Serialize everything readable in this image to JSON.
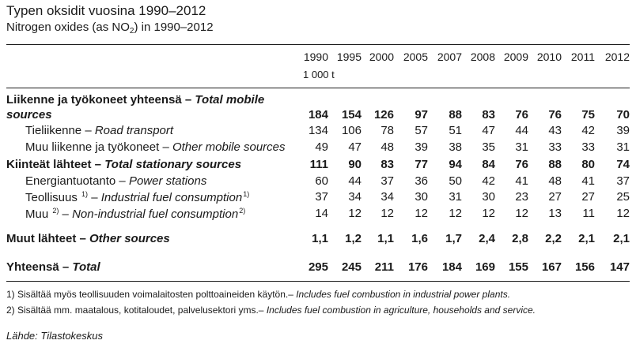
{
  "title": "Typen oksidit vuosina 1990–2012",
  "subtitle_prefix": "Nitrogen oxides (as NO",
  "subtitle_sub": "2",
  "subtitle_suffix": ") in 1990–2012",
  "years": [
    "1990",
    "1995",
    "2000",
    "2005",
    "2007",
    "2008",
    "2009",
    "2010",
    "2011",
    "2012"
  ],
  "unit": "1 000 t",
  "rows": [
    {
      "fi": "Liikenne ja työkoneet yhteensä – ",
      "en": "Total mobile",
      "bold": true,
      "indent": false,
      "values": []
    },
    {
      "fi": "",
      "en": "sources",
      "bold": true,
      "indent": false,
      "values": [
        "184",
        "154",
        "126",
        "97",
        "88",
        "83",
        "76",
        "76",
        "75",
        "70"
      ]
    },
    {
      "fi": "Tieliikenne – ",
      "en": "Road transport",
      "bold": false,
      "indent": true,
      "values": [
        "134",
        "106",
        "78",
        "57",
        "51",
        "47",
        "44",
        "43",
        "42",
        "39"
      ]
    },
    {
      "fi": "Muu liikenne ja työkoneet – ",
      "en": "Other mobile sources",
      "bold": false,
      "indent": true,
      "values": [
        "49",
        "47",
        "48",
        "39",
        "38",
        "35",
        "31",
        "33",
        "33",
        "31"
      ]
    },
    {
      "fi": "Kiinteät lähteet – ",
      "en": "Total stationary sources",
      "bold": true,
      "indent": false,
      "values": [
        "111",
        "90",
        "83",
        "77",
        "94",
        "84",
        "76",
        "88",
        "80",
        "74"
      ]
    },
    {
      "fi": "Energiantuotanto – ",
      "en": "Power stations",
      "bold": false,
      "indent": true,
      "values": [
        "60",
        "44",
        "37",
        "36",
        "50",
        "42",
        "41",
        "48",
        "41",
        "37"
      ]
    },
    {
      "fi": "Teollisuus ",
      "fi_sup": "1)",
      "fi2": " – ",
      "en": "Industrial fuel consumption",
      "en_sup": "1)",
      "bold": false,
      "indent": true,
      "values": [
        "37",
        "34",
        "34",
        "30",
        "31",
        "30",
        "23",
        "27",
        "27",
        "25"
      ]
    },
    {
      "fi": "Muu ",
      "fi_sup": "2)",
      "fi2": " – ",
      "en": "Non-industrial fuel consumption",
      "en_sup": "2)",
      "bold": false,
      "indent": true,
      "values": [
        "14",
        "12",
        "12",
        "12",
        "12",
        "12",
        "12",
        "13",
        "11",
        "12"
      ]
    },
    {
      "fi": "Muut lähteet – ",
      "en": "Other sources",
      "bold": true,
      "indent": false,
      "values": [
        "1,1",
        "1,2",
        "1,1",
        "1,6",
        "1,7",
        "2,4",
        "2,8",
        "2,2",
        "2,1",
        "2,1"
      ]
    },
    {
      "fi": "Yhteensä – ",
      "en": "Total",
      "bold": true,
      "indent": false,
      "values": [
        "295",
        "245",
        "211",
        "176",
        "184",
        "169",
        "155",
        "167",
        "156",
        "147"
      ]
    }
  ],
  "notes": [
    {
      "fi": "1) Sisältää myös teollisuuden voimalaitosten polttoaineiden käytön.– ",
      "en": "Includes fuel combustion in industrial power plants."
    },
    {
      "fi": "2) Sisältää mm. maatalous, kotitaloudet, palvelusektori yms.– ",
      "en": "Includes fuel combustion in agriculture, households and service."
    }
  ],
  "source": "Lähde: Tilastokeskus"
}
